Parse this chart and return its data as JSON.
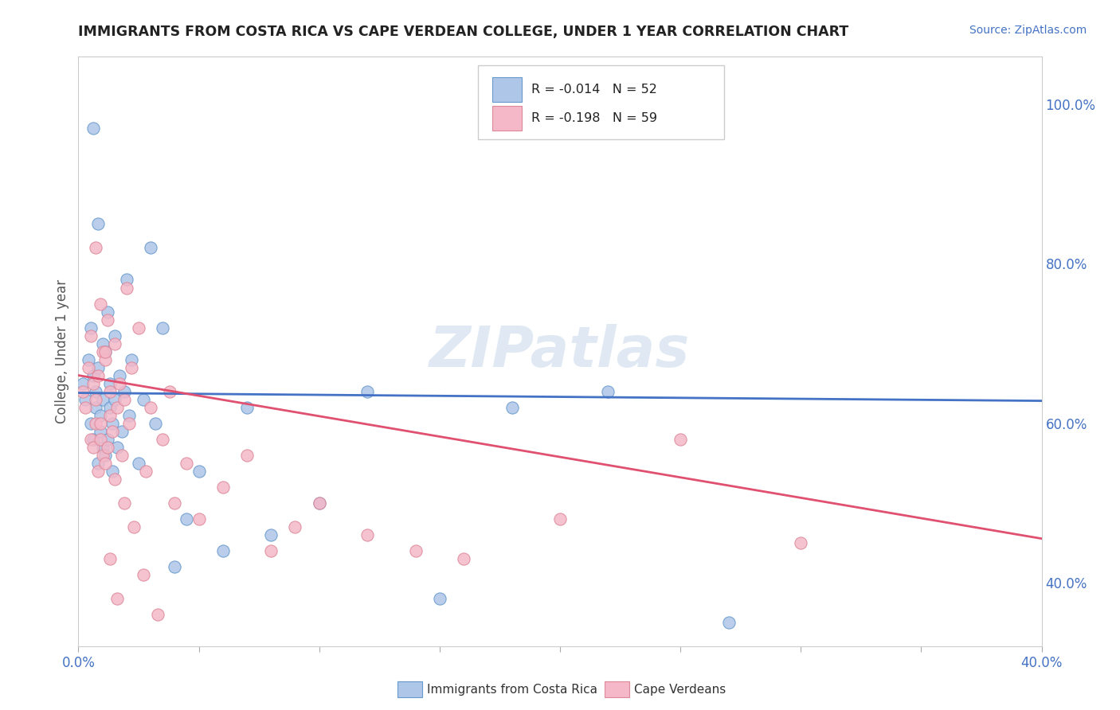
{
  "title": "IMMIGRANTS FROM COSTA RICA VS CAPE VERDEAN COLLEGE, UNDER 1 YEAR CORRELATION CHART",
  "source": "Source: ZipAtlas.com",
  "ylabel": "College, Under 1 year",
  "ylabel_right_ticks": [
    "40.0%",
    "60.0%",
    "80.0%",
    "100.0%"
  ],
  "ylabel_right_values": [
    0.4,
    0.6,
    0.8,
    1.0
  ],
  "xmin": 0.0,
  "xmax": 0.4,
  "ymin": 0.32,
  "ymax": 1.06,
  "series1_label": "Immigrants from Costa Rica",
  "series1_R": "-0.014",
  "series1_N": "52",
  "series1_color": "#aec6e8",
  "series1_edge_color": "#6699cc",
  "series1_line_color": "#4472c4",
  "series2_label": "Cape Verdeans",
  "series2_R": "-0.198",
  "series2_N": "59",
  "series2_color": "#f4b8c8",
  "series2_edge_color": "#dd8899",
  "series2_line_color": "#e05070",
  "watermark": "ZIPatlas",
  "background_color": "#ffffff",
  "grid_color": "#dddddd",
  "blue_trend_x0": 0.0,
  "blue_trend_y0": 0.638,
  "blue_trend_x1": 0.4,
  "blue_trend_y1": 0.628,
  "pink_trend_x0": 0.0,
  "pink_trend_y0": 0.66,
  "pink_trend_x1": 0.4,
  "pink_trend_y1": 0.455,
  "blue_scatter_x": [
    0.002,
    0.003,
    0.004,
    0.005,
    0.005,
    0.006,
    0.006,
    0.007,
    0.007,
    0.008,
    0.008,
    0.009,
    0.009,
    0.01,
    0.01,
    0.01,
    0.011,
    0.011,
    0.012,
    0.012,
    0.013,
    0.013,
    0.014,
    0.014,
    0.015,
    0.015,
    0.016,
    0.017,
    0.018,
    0.019,
    0.02,
    0.021,
    0.022,
    0.025,
    0.027,
    0.03,
    0.032,
    0.035,
    0.04,
    0.045,
    0.05,
    0.06,
    0.07,
    0.08,
    0.1,
    0.12,
    0.15,
    0.18,
    0.22,
    0.27,
    0.006,
    0.008
  ],
  "blue_scatter_y": [
    0.65,
    0.63,
    0.68,
    0.72,
    0.6,
    0.66,
    0.58,
    0.64,
    0.62,
    0.67,
    0.55,
    0.59,
    0.61,
    0.7,
    0.57,
    0.63,
    0.56,
    0.69,
    0.74,
    0.58,
    0.62,
    0.65,
    0.6,
    0.54,
    0.71,
    0.63,
    0.57,
    0.66,
    0.59,
    0.64,
    0.78,
    0.61,
    0.68,
    0.55,
    0.63,
    0.82,
    0.6,
    0.72,
    0.42,
    0.48,
    0.54,
    0.44,
    0.62,
    0.46,
    0.5,
    0.64,
    0.38,
    0.62,
    0.64,
    0.35,
    0.97,
    0.85
  ],
  "pink_scatter_x": [
    0.002,
    0.003,
    0.004,
    0.005,
    0.005,
    0.006,
    0.006,
    0.007,
    0.007,
    0.008,
    0.008,
    0.009,
    0.009,
    0.01,
    0.01,
    0.011,
    0.011,
    0.012,
    0.012,
    0.013,
    0.013,
    0.014,
    0.015,
    0.015,
    0.016,
    0.017,
    0.018,
    0.019,
    0.02,
    0.021,
    0.022,
    0.025,
    0.028,
    0.03,
    0.035,
    0.038,
    0.04,
    0.045,
    0.05,
    0.06,
    0.07,
    0.08,
    0.09,
    0.1,
    0.12,
    0.14,
    0.16,
    0.2,
    0.25,
    0.3,
    0.007,
    0.009,
    0.011,
    0.013,
    0.016,
    0.019,
    0.023,
    0.027,
    0.033
  ],
  "pink_scatter_y": [
    0.64,
    0.62,
    0.67,
    0.71,
    0.58,
    0.65,
    0.57,
    0.63,
    0.6,
    0.66,
    0.54,
    0.58,
    0.6,
    0.69,
    0.56,
    0.55,
    0.68,
    0.73,
    0.57,
    0.61,
    0.64,
    0.59,
    0.53,
    0.7,
    0.62,
    0.65,
    0.56,
    0.63,
    0.77,
    0.6,
    0.67,
    0.72,
    0.54,
    0.62,
    0.58,
    0.64,
    0.5,
    0.55,
    0.48,
    0.52,
    0.56,
    0.44,
    0.47,
    0.5,
    0.46,
    0.44,
    0.43,
    0.48,
    0.58,
    0.45,
    0.82,
    0.75,
    0.69,
    0.43,
    0.38,
    0.5,
    0.47,
    0.41,
    0.36
  ]
}
